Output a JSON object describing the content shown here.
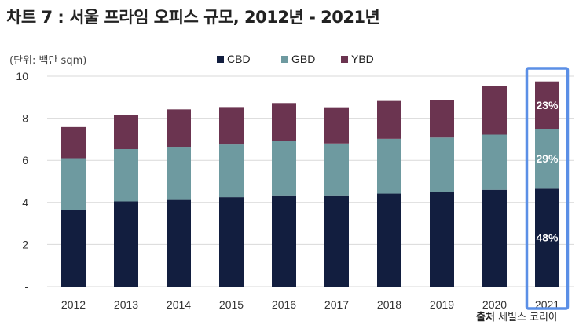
{
  "title": "차트 7 : 서울 프라임 오피스 규모, 2012년 - 2021년",
  "unit_label": "(단위: 백만 sqm)",
  "source": {
    "prefix": "출처",
    "name": "세빌스 코리아"
  },
  "chart_data": {
    "type": "bar",
    "stacked": true,
    "categories": [
      "2012",
      "2013",
      "2014",
      "2015",
      "2016",
      "2017",
      "2018",
      "2019",
      "2020",
      "2021"
    ],
    "series": [
      {
        "name": "CBD",
        "color": "#121e3f",
        "values": [
          3.65,
          4.05,
          4.12,
          4.25,
          4.3,
          4.3,
          4.42,
          4.48,
          4.6,
          4.65
        ]
      },
      {
        "name": "GBD",
        "color": "#6e9aa0",
        "values": [
          2.45,
          2.48,
          2.52,
          2.5,
          2.62,
          2.5,
          2.6,
          2.6,
          2.62,
          2.85
        ]
      },
      {
        "name": "YBD",
        "color": "#6b3450",
        "values": [
          1.48,
          1.62,
          1.78,
          1.78,
          1.8,
          1.72,
          1.8,
          1.78,
          2.3,
          2.25
        ]
      }
    ],
    "ylim": [
      0,
      10
    ],
    "yticks": [
      {
        "value": 0,
        "label": "-"
      },
      {
        "value": 2,
        "label": "2"
      },
      {
        "value": 4,
        "label": "4"
      },
      {
        "value": 6,
        "label": "6"
      },
      {
        "value": 8,
        "label": "8"
      },
      {
        "value": 10,
        "label": "10"
      }
    ],
    "grid": true,
    "legend_position": "top",
    "highlight": {
      "category": "2021",
      "color": "#5b8fe6"
    },
    "annotations": [
      {
        "category": "2021",
        "series": "CBD",
        "label": "48%"
      },
      {
        "category": "2021",
        "series": "GBD",
        "label": "29%"
      },
      {
        "category": "2021",
        "series": "YBD",
        "label": "23%"
      }
    ]
  }
}
